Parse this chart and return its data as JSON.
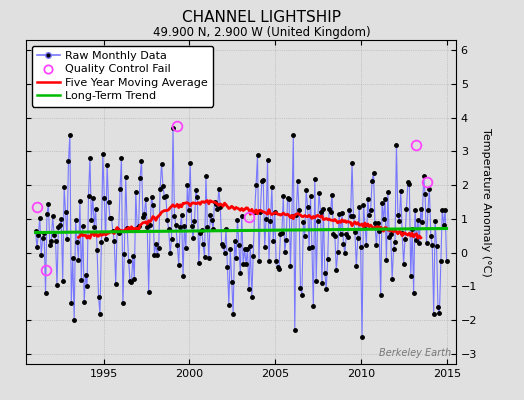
{
  "title": "CHANNEL LIGHTSHIP",
  "subtitle": "49.900 N, 2.900 W (United Kingdom)",
  "ylabel": "Temperature Anomaly (°C)",
  "watermark": "Berkeley Earth",
  "xlim": [
    1990.5,
    2015.5
  ],
  "ylim": [
    -3.3,
    6.3
  ],
  "yticks": [
    -3,
    -2,
    -1,
    0,
    1,
    2,
    3,
    4,
    5,
    6
  ],
  "xticks": [
    1995,
    2000,
    2005,
    2010,
    2015
  ],
  "raw_line_color": "#7777ff",
  "raw_marker_color": "#000000",
  "ma_color": "#ff0000",
  "trend_color": "#00bb00",
  "qc_color": "#ff44ff",
  "background_color": "#e0e0e0",
  "legend_fontsize": 8,
  "title_fontsize": 11,
  "subtitle_fontsize": 8.5,
  "ylabel_fontsize": 8,
  "tick_labelsize": 8,
  "watermark_fontsize": 7,
  "raw_linewidth": 0.8,
  "ma_linewidth": 2.0,
  "trend_linewidth": 2.2,
  "raw_markersize": 2.5,
  "qc_markersize": 7,
  "grid_color": "#aaaaaa",
  "grid_linewidth": 0.5
}
